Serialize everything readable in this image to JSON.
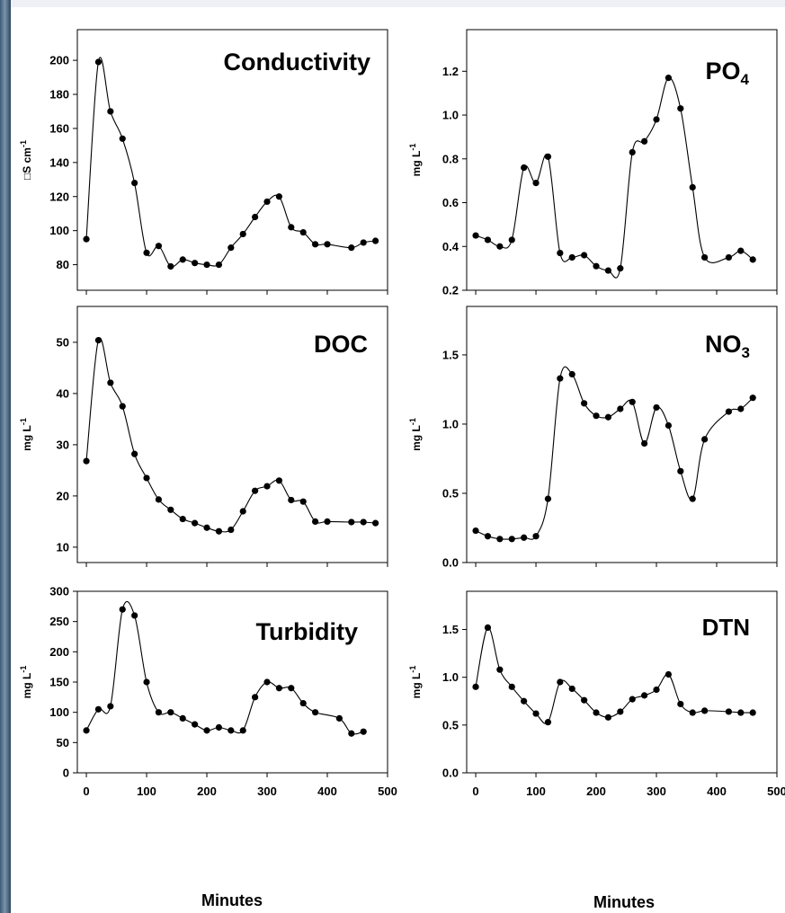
{
  "colors": {
    "strip": "#3c5a78",
    "line": "#000000",
    "point": "#000000",
    "frame": "#000000"
  },
  "xlabel": "Minutes",
  "chart_data": [
    {
      "type": "line",
      "title": "Conductivity",
      "title_sub": "",
      "ylabel": "□S cm",
      "ylabel_sup": "-1",
      "xlim": [
        -15,
        500
      ],
      "ylim": [
        65,
        218
      ],
      "yticks": [
        80,
        100,
        120,
        140,
        160,
        180,
        200
      ],
      "show_xtick_labels": false,
      "xticks": [
        0,
        100,
        200,
        300,
        400,
        500
      ],
      "x": [
        0,
        20,
        40,
        60,
        80,
        100,
        120,
        140,
        160,
        180,
        200,
        220,
        240,
        260,
        280,
        300,
        320,
        340,
        360,
        380,
        400,
        440,
        460,
        480
      ],
      "y": [
        95,
        199,
        170,
        154,
        128,
        87,
        91,
        79,
        83,
        81,
        80,
        80,
        90,
        98,
        108,
        117,
        120,
        102,
        99,
        92,
        92,
        90,
        93,
        94
      ]
    },
    {
      "type": "line",
      "title": "PO",
      "title_sub": "4",
      "ylabel": "mg L",
      "ylabel_sup": "-1",
      "xlim": [
        -15,
        500
      ],
      "ylim": [
        0.2,
        1.39
      ],
      "yticks": [
        0.2,
        0.4,
        0.6,
        0.8,
        1.0,
        1.2
      ],
      "show_xtick_labels": false,
      "xticks": [
        0,
        100,
        200,
        300,
        400,
        500
      ],
      "x": [
        0,
        20,
        40,
        60,
        80,
        100,
        120,
        140,
        160,
        180,
        200,
        220,
        240,
        260,
        280,
        300,
        320,
        340,
        360,
        380,
        420,
        440,
        460
      ],
      "y": [
        0.45,
        0.43,
        0.4,
        0.43,
        0.76,
        0.69,
        0.81,
        0.37,
        0.35,
        0.36,
        0.31,
        0.29,
        0.3,
        0.83,
        0.88,
        0.98,
        1.17,
        1.03,
        0.67,
        0.35,
        0.35,
        0.38,
        0.34
      ]
    },
    {
      "type": "line",
      "title": "DOC",
      "title_sub": "",
      "ylabel": "mg L",
      "ylabel_sup": "-1",
      "xlim": [
        -15,
        500
      ],
      "ylim": [
        7,
        57
      ],
      "yticks": [
        10,
        20,
        30,
        40,
        50
      ],
      "show_xtick_labels": false,
      "xticks": [
        0,
        100,
        200,
        300,
        400,
        500
      ],
      "x": [
        0,
        20,
        40,
        60,
        80,
        100,
        120,
        140,
        160,
        180,
        200,
        220,
        240,
        260,
        280,
        300,
        320,
        340,
        360,
        380,
        400,
        440,
        460,
        480
      ],
      "y": [
        26.8,
        50.4,
        42.1,
        37.5,
        28.2,
        23.5,
        19.3,
        17.3,
        15.5,
        14.7,
        13.8,
        13.1,
        13.4,
        17.0,
        21.0,
        21.9,
        23.0,
        19.2,
        18.9,
        15.0,
        15.0,
        14.9,
        14.9,
        14.7
      ]
    },
    {
      "type": "line",
      "title": "NO",
      "title_sub": "3",
      "ylabel": "mg L",
      "ylabel_sup": "-1",
      "xlim": [
        -15,
        500
      ],
      "ylim": [
        0.0,
        1.85
      ],
      "yticks": [
        0.0,
        0.5,
        1.0,
        1.5
      ],
      "show_xtick_labels": false,
      "xticks": [
        0,
        100,
        200,
        300,
        400,
        500
      ],
      "x": [
        0,
        20,
        40,
        60,
        80,
        100,
        120,
        140,
        160,
        180,
        200,
        220,
        240,
        260,
        280,
        300,
        320,
        340,
        360,
        380,
        420,
        440,
        460
      ],
      "y": [
        0.23,
        0.19,
        0.17,
        0.17,
        0.18,
        0.19,
        0.46,
        1.33,
        1.36,
        1.15,
        1.06,
        1.05,
        1.11,
        1.16,
        0.86,
        1.12,
        0.99,
        0.66,
        0.46,
        0.89,
        1.09,
        1.11,
        1.19
      ]
    },
    {
      "type": "line",
      "title": "Turbidity",
      "title_sub": "",
      "ylabel": "mg L",
      "ylabel_sup": "-1",
      "xlim": [
        -15,
        500
      ],
      "ylim": [
        0,
        300
      ],
      "yticks": [
        0,
        50,
        100,
        150,
        200,
        250,
        300
      ],
      "show_xtick_labels": true,
      "xticks": [
        0,
        100,
        200,
        300,
        400,
        500
      ],
      "x": [
        0,
        20,
        40,
        60,
        80,
        100,
        120,
        140,
        160,
        180,
        200,
        220,
        240,
        260,
        280,
        300,
        320,
        340,
        360,
        380,
        420,
        440,
        460
      ],
      "y": [
        70,
        105,
        110,
        270,
        260,
        150,
        100,
        100,
        90,
        80,
        70,
        75,
        70,
        70,
        125,
        150,
        140,
        140,
        115,
        100,
        90,
        65,
        68
      ]
    },
    {
      "type": "line",
      "title": "DTN",
      "title_sub": "",
      "ylabel": "mg L",
      "ylabel_sup": "-1",
      "xlim": [
        -15,
        500
      ],
      "ylim": [
        0.0,
        1.9
      ],
      "yticks": [
        0.0,
        0.5,
        1.0,
        1.5
      ],
      "show_xtick_labels": true,
      "xticks": [
        0,
        100,
        200,
        300,
        400,
        500
      ],
      "x": [
        0,
        20,
        40,
        60,
        80,
        100,
        120,
        140,
        160,
        180,
        200,
        220,
        240,
        260,
        280,
        300,
        320,
        340,
        360,
        380,
        420,
        440,
        460
      ],
      "y": [
        0.9,
        1.52,
        1.08,
        0.9,
        0.75,
        0.62,
        0.53,
        0.95,
        0.88,
        0.76,
        0.63,
        0.58,
        0.64,
        0.77,
        0.81,
        0.87,
        1.03,
        0.72,
        0.63,
        0.65,
        0.64,
        0.63,
        0.63
      ]
    }
  ]
}
